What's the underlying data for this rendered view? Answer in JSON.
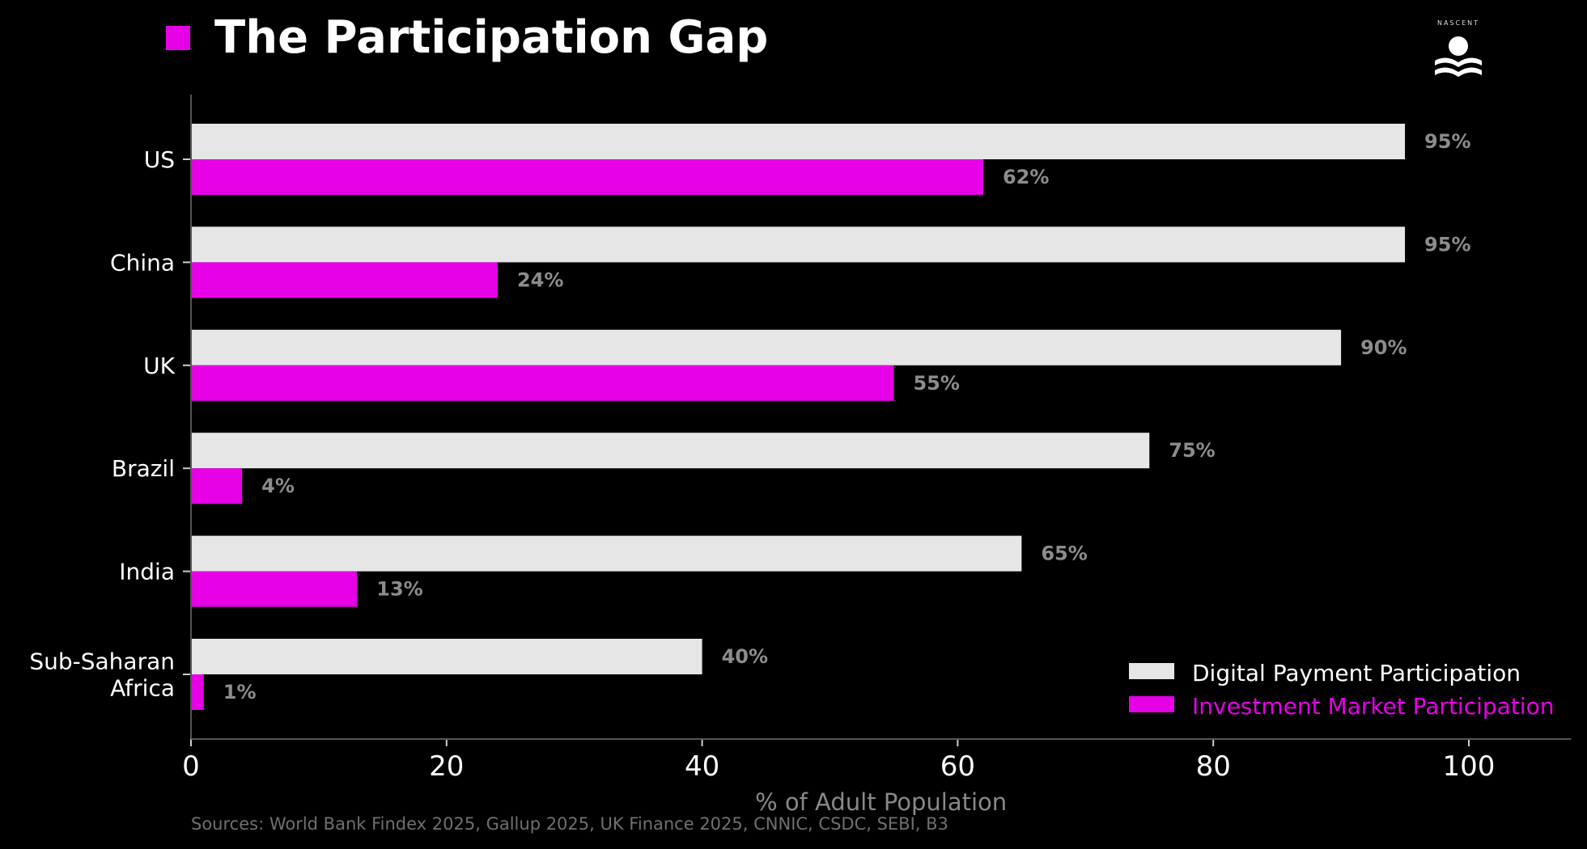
{
  "title": "The Participation Gap",
  "logo": {
    "text": "NASCENT",
    "icon": "wave-person-logo-icon"
  },
  "colors": {
    "digital": "#e6e6e6",
    "investment": "#e600e6",
    "background": "#000000",
    "data_label": "#8c8c8c"
  },
  "chart_data": {
    "type": "bar",
    "orientation": "horizontal",
    "title": "The Participation Gap",
    "categories": [
      "US",
      "China",
      "UK",
      "Brazil",
      "India",
      "Sub-Saharan Africa"
    ],
    "category_label_lines": [
      [
        "US"
      ],
      [
        "China"
      ],
      [
        "UK"
      ],
      [
        "Brazil"
      ],
      [
        "India"
      ],
      [
        "Sub-Saharan",
        "Africa"
      ]
    ],
    "series": [
      {
        "name": "Digital Payment Participation",
        "values": [
          95,
          95,
          90,
          75,
          65,
          40
        ],
        "labels": [
          "95%",
          "95%",
          "90%",
          "75%",
          "65%",
          "40%"
        ]
      },
      {
        "name": "Investment Market Participation",
        "values": [
          62,
          24,
          55,
          4,
          13,
          1
        ],
        "labels": [
          "62%",
          "24%",
          "55%",
          "4%",
          "13%",
          "1%"
        ]
      }
    ],
    "xlabel": "% of Adult Population",
    "ylabel": "",
    "xlim": [
      0,
      108
    ],
    "xticks": [
      0,
      20,
      40,
      60,
      80,
      100
    ],
    "xtick_labels": [
      "0",
      "20",
      "40",
      "60",
      "80",
      "100"
    ],
    "grid": false,
    "legend_position": "bottom-right"
  },
  "source_note": "Sources: World Bank Findex 2025, Gallup 2025, UK Finance 2025, CNNIC, CSDC, SEBI, B3"
}
